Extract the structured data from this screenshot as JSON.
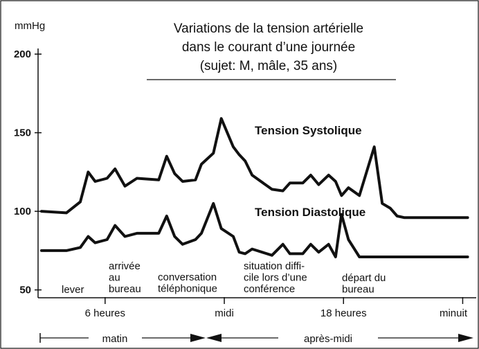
{
  "chart_data": {
    "type": "line",
    "title": [
      "Variations de la tension artérielle",
      "dans le courant d’une journée",
      "(sujet: M, mâle, 35 ans)"
    ],
    "ylabel": "mmHg",
    "ylim": [
      50,
      200
    ],
    "yticks": [
      50,
      100,
      150,
      200
    ],
    "x_tick_labels": [
      {
        "label": "6 heures",
        "hour": 6
      },
      {
        "label": "midi",
        "hour": 12
      },
      {
        "label": "18 heures",
        "hour": 18
      },
      {
        "label": "minuit",
        "hour": 24
      }
    ],
    "xlim_hours": [
      2.7,
      24.3
    ],
    "series": [
      {
        "name": "Tension Systolique",
        "x": [
          2.8,
          4.05,
          4.75,
          5.15,
          5.5,
          6.1,
          6.5,
          7.0,
          7.6,
          8.7,
          9.1,
          9.5,
          9.9,
          10.55,
          10.85,
          11.45,
          11.85,
          12.45,
          12.75,
          13.05,
          13.4,
          14.4,
          14.95,
          15.3,
          15.95,
          16.35,
          16.75,
          17.25,
          17.6,
          17.9,
          18.25,
          18.8,
          19.55,
          19.95,
          20.35,
          20.7,
          21.05,
          21.4,
          21.8,
          22.05,
          23.4,
          23.75,
          24.25
        ],
        "values": [
          100,
          99,
          106,
          125,
          119,
          121,
          127,
          116,
          121,
          120,
          135,
          124,
          119,
          120,
          130,
          137,
          159,
          141,
          136,
          132,
          123,
          114,
          113,
          118,
          118,
          123,
          117,
          123,
          119,
          110,
          115,
          110,
          141,
          105,
          102,
          97,
          96,
          96,
          96,
          96,
          96,
          96,
          96
        ]
      },
      {
        "name": "Tension Diastolique",
        "x": [
          2.8,
          4.05,
          4.75,
          5.15,
          5.5,
          6.1,
          6.5,
          7.0,
          7.6,
          8.7,
          9.1,
          9.5,
          9.9,
          10.55,
          10.85,
          11.45,
          11.85,
          12.45,
          12.75,
          13.05,
          13.4,
          14.4,
          14.95,
          15.3,
          15.95,
          16.35,
          16.75,
          17.25,
          17.6,
          17.9,
          18.25,
          18.8,
          19.55,
          19.95,
          20.35,
          20.7,
          21.05,
          21.4,
          21.8,
          22.05,
          23.4,
          23.75,
          24.25
        ],
        "values": [
          75,
          75,
          77,
          84,
          80,
          82,
          91,
          84,
          86,
          86,
          97,
          84,
          79,
          82,
          86,
          105,
          89,
          84,
          74,
          73,
          76,
          72,
          79,
          73,
          73,
          79,
          74,
          79,
          71,
          98,
          82,
          71,
          71,
          71,
          71,
          71,
          71,
          71,
          71,
          71,
          71,
          71,
          71
        ]
      }
    ],
    "series_labels": [
      "Tension Systolique",
      "Tension Diastolique"
    ],
    "annotations": [
      {
        "lines": [
          "lever"
        ],
        "hour": 4.5
      },
      {
        "lines": [
          "arrivée",
          "au",
          "bureau"
        ],
        "hour": 7.3
      },
      {
        "lines": [
          "conversation",
          "téléphonique"
        ],
        "hour": 10.9
      },
      {
        "lines": [
          "situation diffi-",
          "cile lors d’une",
          "conférence"
        ],
        "hour": 15.4
      },
      {
        "lines": [
          "départ du",
          "bureau"
        ],
        "hour": 20.2
      }
    ],
    "periods": [
      {
        "label": "matin",
        "from_hour": 2.7,
        "to_hour": 12
      },
      {
        "label": "après-midi",
        "from_hour": 12,
        "to_hour": 24.3
      }
    ],
    "grid": false,
    "legend": "none"
  }
}
